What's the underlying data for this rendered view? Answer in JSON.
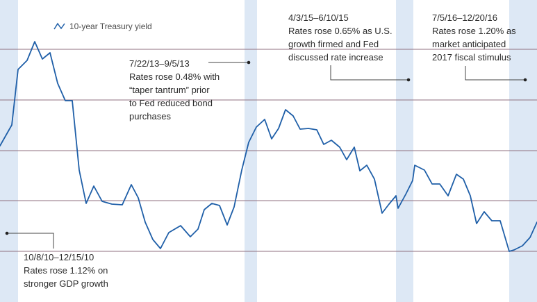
{
  "chart_data": {
    "type": "line",
    "colors": {
      "line": "#1f5fa8",
      "band": "#dde8f5",
      "grid": "#8f6f7f",
      "leader": "#444444"
    },
    "series": [
      {
        "name": "10-year Treasury yield",
        "points": [
          [
            0,
            210
          ],
          [
            17,
            180
          ],
          [
            26,
            100
          ],
          [
            39,
            87
          ],
          [
            50,
            60
          ],
          [
            61,
            85
          ],
          [
            72,
            76
          ],
          [
            83,
            120
          ],
          [
            94,
            145
          ],
          [
            104,
            145
          ],
          [
            114,
            245
          ],
          [
            124,
            293
          ],
          [
            135,
            268
          ],
          [
            147,
            290
          ],
          [
            161,
            294
          ],
          [
            176,
            295
          ],
          [
            189,
            266
          ],
          [
            199,
            285
          ],
          [
            209,
            320
          ],
          [
            220,
            345
          ],
          [
            231,
            358
          ],
          [
            243,
            335
          ],
          [
            260,
            325
          ],
          [
            274,
            341
          ],
          [
            285,
            330
          ],
          [
            294,
            302
          ],
          [
            305,
            293
          ],
          [
            316,
            296
          ],
          [
            327,
            324
          ],
          [
            337,
            298
          ],
          [
            348,
            245
          ],
          [
            358,
            205
          ],
          [
            369,
            183
          ],
          [
            381,
            172
          ],
          [
            391,
            200
          ],
          [
            401,
            185
          ],
          [
            411,
            158
          ],
          [
            422,
            167
          ],
          [
            432,
            186
          ],
          [
            444,
            185
          ],
          [
            456,
            187
          ],
          [
            466,
            208
          ],
          [
            477,
            202
          ],
          [
            489,
            212
          ],
          [
            499,
            230
          ],
          [
            510,
            212
          ],
          [
            518,
            246
          ],
          [
            528,
            238
          ],
          [
            539,
            258
          ],
          [
            550,
            307
          ],
          [
            560,
            294
          ],
          [
            570,
            282
          ],
          [
            573,
            300
          ],
          [
            584,
            280
          ],
          [
            594,
            260
          ],
          [
            597,
            238
          ],
          [
            611,
            245
          ],
          [
            622,
            265
          ],
          [
            633,
            265
          ],
          [
            645,
            282
          ],
          [
            657,
            251
          ],
          [
            667,
            258
          ],
          [
            677,
            282
          ],
          [
            686,
            322
          ],
          [
            697,
            305
          ],
          [
            708,
            318
          ],
          [
            720,
            318
          ],
          [
            733,
            362
          ],
          [
            740,
            360
          ],
          [
            752,
            354
          ],
          [
            763,
            342
          ],
          [
            773,
            320
          ]
        ]
      }
    ],
    "legend": {
      "label": "10-year Treasury yield",
      "placement": "top-left"
    },
    "shaded_periods": [
      {
        "label": "10/8/10–12/15/10"
      },
      {
        "label": "7/22/13–9/5/13"
      },
      {
        "label": "4/3/15–6/10/15"
      },
      {
        "label": "7/5/16–12/20/16"
      }
    ],
    "annotations": [
      {
        "lines": [
          "10/8/10–12/15/10",
          "Rates rose 1.12% on",
          "stronger GDP growth"
        ]
      },
      {
        "lines": [
          "7/22/13–9/5/13",
          "Rates rose 0.48% with",
          "“taper tantrum” prior",
          "to Fed reduced bond",
          "purchases"
        ]
      },
      {
        "lines": [
          "4/3/15–6/10/15",
          "Rates rose 0.65% as U.S.",
          "growth firmed and Fed",
          "discussed rate increase"
        ]
      },
      {
        "lines": [
          "7/5/16–12/20/16",
          "Rates rose 1.20% as",
          "market anticipated",
          "2017 fiscal stimulus"
        ]
      }
    ],
    "xlabel": "",
    "ylabel": "",
    "grid": true
  }
}
